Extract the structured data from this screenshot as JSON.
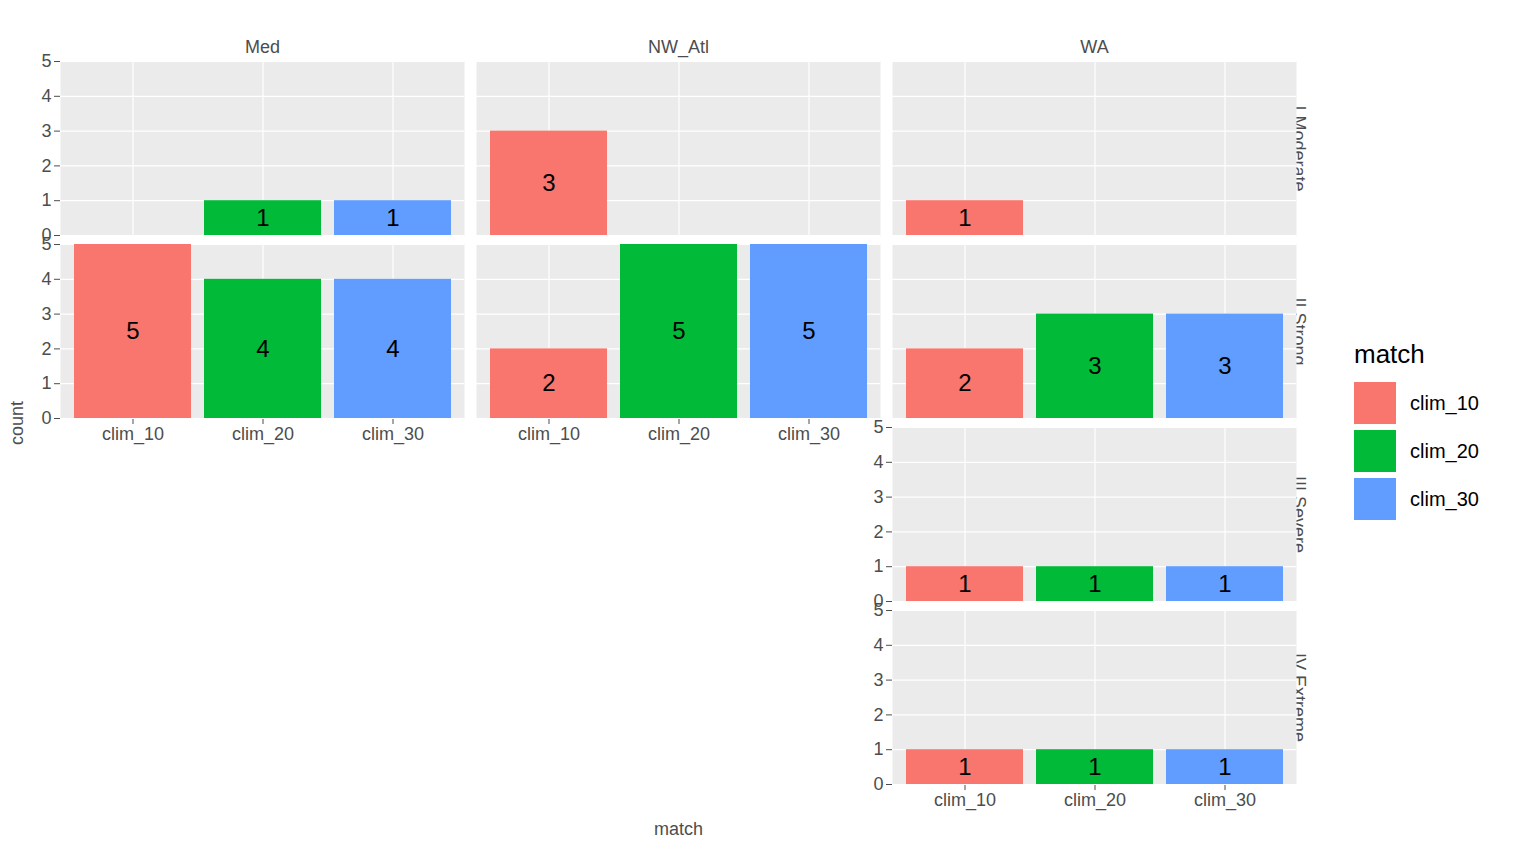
{
  "chart_data": {
    "type": "bar",
    "x_label": "match",
    "y_label": "count",
    "legend_title": "match",
    "categories": [
      "clim_10",
      "clim_20",
      "clim_30"
    ],
    "series": [
      {
        "name": "clim_10",
        "color": "#F8766D"
      },
      {
        "name": "clim_20",
        "color": "#00BA38"
      },
      {
        "name": "clim_30",
        "color": "#619CFF"
      }
    ],
    "facet_columns": [
      "Med",
      "NW_Atl",
      "WA"
    ],
    "facet_rows": [
      "I Moderate",
      "II Strong",
      "III Severe",
      "IV Extreme"
    ],
    "panels": [
      {
        "column": "Med",
        "row": "I Moderate",
        "values": [
          null,
          1,
          1
        ]
      },
      {
        "column": "Med",
        "row": "II Strong",
        "values": [
          5,
          4,
          4
        ]
      },
      {
        "column": "Med",
        "row": "III Severe",
        "values": [
          null,
          null,
          null
        ]
      },
      {
        "column": "Med",
        "row": "IV Extreme",
        "values": [
          null,
          null,
          null
        ]
      },
      {
        "column": "NW_Atl",
        "row": "I Moderate",
        "values": [
          3,
          null,
          null
        ]
      },
      {
        "column": "NW_Atl",
        "row": "II Strong",
        "values": [
          2,
          5,
          5
        ]
      },
      {
        "column": "NW_Atl",
        "row": "III Severe",
        "values": [
          null,
          null,
          null
        ]
      },
      {
        "column": "NW_Atl",
        "row": "IV Extreme",
        "values": [
          null,
          null,
          null
        ]
      },
      {
        "column": "WA",
        "row": "I Moderate",
        "values": [
          1,
          null,
          null
        ]
      },
      {
        "column": "WA",
        "row": "II Strong",
        "values": [
          2,
          3,
          3
        ]
      },
      {
        "column": "WA",
        "row": "III Severe",
        "values": [
          1,
          1,
          1
        ]
      },
      {
        "column": "WA",
        "row": "IV Extreme",
        "values": [
          1,
          1,
          1
        ]
      }
    ],
    "ylim": [
      0,
      5
    ],
    "yticks": [
      0,
      1,
      2,
      3,
      4,
      5
    ],
    "grid": true,
    "data_labels": true,
    "legend": "right"
  }
}
